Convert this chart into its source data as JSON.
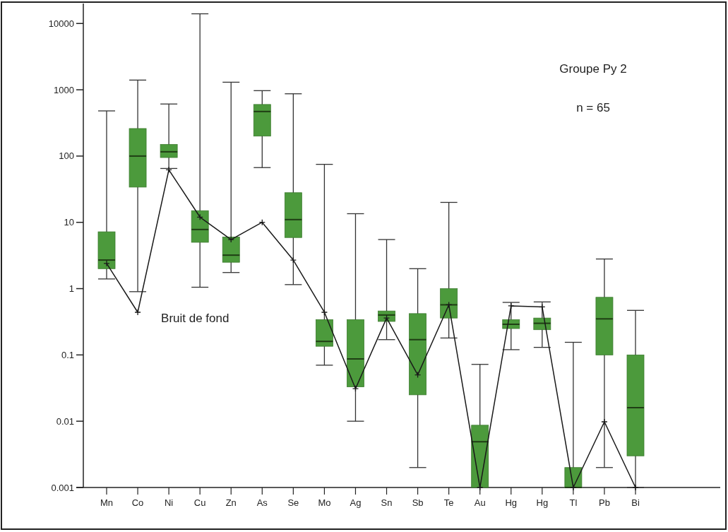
{
  "chart_data": {
    "type": "box",
    "categories": [
      "Mn",
      "Co",
      "Ni",
      "Cu",
      "Zn",
      "As",
      "Se",
      "Mo",
      "Ag",
      "Sn",
      "Sb",
      "Te",
      "Au",
      "Hg",
      "Hg",
      "Tl",
      "Pb",
      "Bi"
    ],
    "log": true,
    "ylim": [
      0.001,
      20000
    ],
    "yticks": [
      0.001,
      0.01,
      0.1,
      1,
      10,
      100,
      1000,
      10000
    ],
    "grid": false,
    "annotations": [
      "Groupe Py 2",
      "n = 65"
    ],
    "color": "#4c9a3c",
    "boxes": [
      {
        "low": 1.4,
        "q1": 2.0,
        "median": 2.7,
        "q3": 7.2,
        "high": 480
      },
      {
        "low": 0.9,
        "q1": 34,
        "median": 100,
        "q3": 260,
        "high": 1400
      },
      {
        "low": 65,
        "q1": 95,
        "median": 116,
        "q3": 150,
        "high": 610
      },
      {
        "low": 1.05,
        "q1": 5.0,
        "median": 7.8,
        "q3": 15,
        "high": 14000
      },
      {
        "low": 1.75,
        "q1": 2.5,
        "median": 3.2,
        "q3": 6.0,
        "high": 1300
      },
      {
        "low": 67,
        "q1": 200,
        "median": 470,
        "q3": 600,
        "high": 970
      },
      {
        "low": 1.15,
        "q1": 5.9,
        "median": 11,
        "q3": 28,
        "high": 870
      },
      {
        "low": 0.07,
        "q1": 0.135,
        "median": 0.16,
        "q3": 0.34,
        "high": 75
      },
      {
        "low": 0.01,
        "q1": 0.033,
        "median": 0.087,
        "q3": 0.34,
        "high": 13.5
      },
      {
        "low": 0.17,
        "q1": 0.32,
        "median": 0.4,
        "q3": 0.46,
        "high": 5.5
      },
      {
        "low": 0.002,
        "q1": 0.025,
        "median": 0.17,
        "q3": 0.42,
        "high": 2.0
      },
      {
        "low": 0.18,
        "q1": 0.36,
        "median": 0.57,
        "q3": 1.0,
        "high": 20
      },
      {
        "low": 0.001,
        "q1": 0.001,
        "median": 0.0049,
        "q3": 0.0087,
        "high": 0.072
      },
      {
        "low": 0.12,
        "q1": 0.25,
        "median": 0.29,
        "q3": 0.34,
        "high": 0.62
      },
      {
        "low": 0.13,
        "q1": 0.24,
        "median": 0.3,
        "q3": 0.36,
        "high": 0.63
      },
      {
        "low": 0.001,
        "q1": 0.001,
        "median": 0.001,
        "q3": 0.002,
        "high": 0.155
      },
      {
        "low": 0.002,
        "q1": 0.1,
        "median": 0.35,
        "q3": 0.74,
        "high": 2.8
      },
      {
        "low": 0.001,
        "q1": 0.003,
        "median": 0.016,
        "q3": 0.1,
        "high": 0.47
      }
    ],
    "series": [
      {
        "type": "line",
        "name": "Bruit de fond",
        "color": "#1a1a1a",
        "marker": "cross",
        "values": [
          2.4,
          0.44,
          62,
          12,
          5.5,
          10,
          2.7,
          0.44,
          0.031,
          0.36,
          0.05,
          0.57,
          0.001,
          0.55,
          0.53,
          0.001,
          0.0098,
          0.001
        ]
      }
    ]
  }
}
